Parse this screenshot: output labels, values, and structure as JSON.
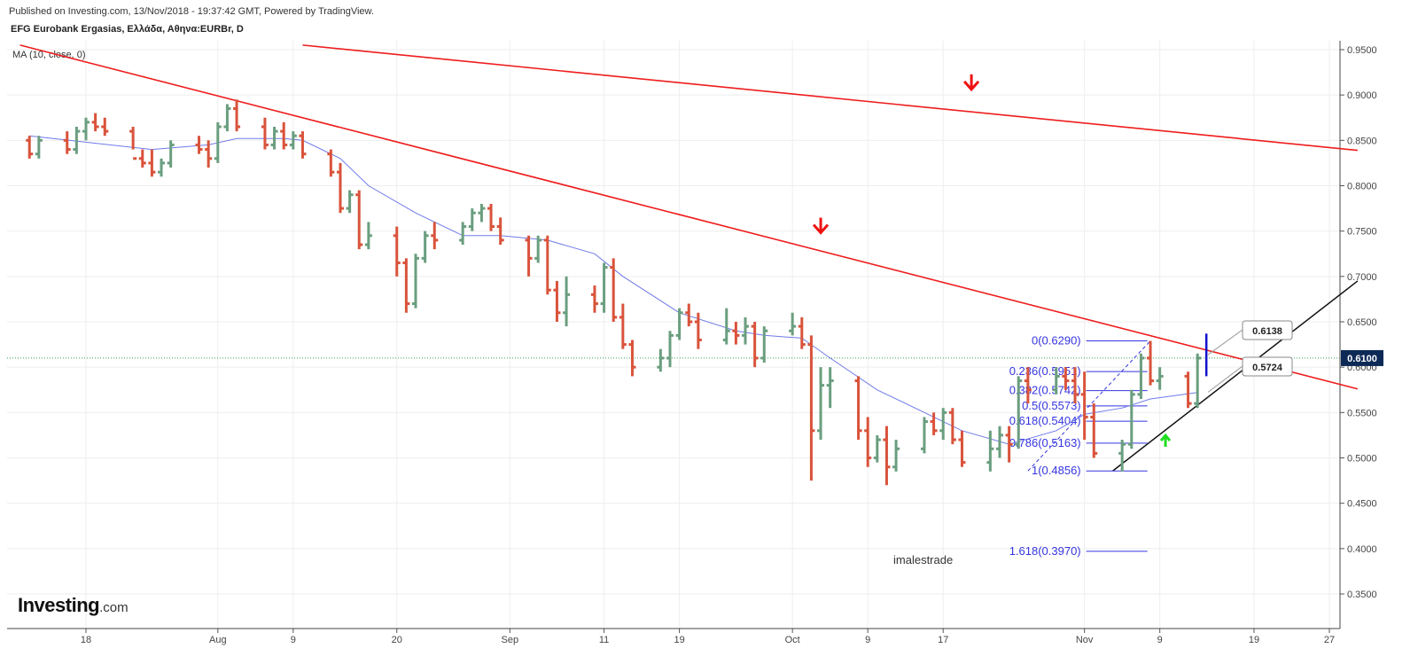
{
  "header": {
    "published": "Published on Investing.com, 13/Nov/2018 - 19:37:42 GMT, Powered by TradingView.",
    "symbol": "EFG Eurobank Ergasias, Ελλάδα, Αθηνα:EURBr, D",
    "indicator": "MA (10, close, 0)"
  },
  "logo": {
    "main": "Investing",
    "suffix": ".com"
  },
  "watermark": "imalestrade",
  "colors": {
    "up": "#6a9e7f",
    "down": "#d9533b",
    "ma": "#6f7bea",
    "trendline": "#ee1c1c",
    "support": "#111111",
    "fib": "#3535e0",
    "grid": "#eeeeee",
    "current_price_line": "#3c9e62",
    "current_price_bg": "#0d2a57",
    "arrow_up": "#22dd22",
    "arrow_down": "#ee1111"
  },
  "chart_data": {
    "type": "ohlc",
    "title": "EFG Eurobank Ergasias, Ελλάδα, Αθηνα:EURBr, D",
    "ylim": [
      0.32,
      0.96
    ],
    "yticks": [
      "0.9500",
      "0.9000",
      "0.8500",
      "0.8000",
      "0.7500",
      "0.7000",
      "0.6500",
      "0.6000",
      "0.5500",
      "0.5000",
      "0.4500",
      "0.4000",
      "0.3500"
    ],
    "xticks": [
      {
        "label": "18",
        "date": "2018-07-18"
      },
      {
        "label": "Aug",
        "date": "2018-08-01"
      },
      {
        "label": "9",
        "date": "2018-08-09"
      },
      {
        "label": "20",
        "date": "2018-08-20"
      },
      {
        "label": "Sep",
        "date": "2018-09-01"
      },
      {
        "label": "11",
        "date": "2018-09-11"
      },
      {
        "label": "19",
        "date": "2018-09-19"
      },
      {
        "label": "Oct",
        "date": "2018-10-01"
      },
      {
        "label": "9",
        "date": "2018-10-09"
      },
      {
        "label": "17",
        "date": "2018-10-17"
      },
      {
        "label": "Nov",
        "date": "2018-11-01"
      },
      {
        "label": "9",
        "date": "2018-11-09"
      },
      {
        "label": "19",
        "date": "2018-11-19"
      },
      {
        "label": "27",
        "date": "2018-11-27"
      }
    ],
    "current_price": "0.6100",
    "callouts": [
      {
        "label": "0.6138",
        "value": 0.6138
      },
      {
        "label": "0.5724",
        "value": 0.5724
      }
    ],
    "fibonacci": [
      {
        "label": "0(0.6290)",
        "value": 0.629
      },
      {
        "label": "0.236(0.5951)",
        "value": 0.5951
      },
      {
        "label": "0.382(0.5742)",
        "value": 0.5742
      },
      {
        "label": "0.5(0.5573)",
        "value": 0.5573
      },
      {
        "label": "0.618(0.5404)",
        "value": 0.5404
      },
      {
        "label": "0.786(0.5163)",
        "value": 0.5163
      },
      {
        "label": "1(0.4856)",
        "value": 0.4856
      },
      {
        "label": "1.618(0.3970)",
        "value": 0.397
      }
    ],
    "trendlines": [
      {
        "name": "upper",
        "points": [
          [
            "2018-08-10",
            0.955
          ],
          [
            "2018-11-30",
            0.839
          ]
        ]
      },
      {
        "name": "middle",
        "points": [
          [
            "2018-07-11",
            0.955
          ],
          [
            "2018-11-30",
            0.576
          ]
        ]
      },
      {
        "name": "support",
        "points": [
          [
            "2018-11-04",
            0.4856
          ],
          [
            "2018-11-30",
            0.695
          ]
        ]
      }
    ],
    "series": [
      {
        "type": "ohlc",
        "bars": [
          [
            "2018-07-12",
            0.85,
            0.855,
            0.83,
            0.835
          ],
          [
            "2018-07-13",
            0.835,
            0.855,
            0.83,
            0.85
          ],
          [
            "2018-07-16",
            0.85,
            0.86,
            0.835,
            0.84
          ],
          [
            "2018-07-17",
            0.84,
            0.865,
            0.835,
            0.86
          ],
          [
            "2018-07-18",
            0.86,
            0.875,
            0.85,
            0.87
          ],
          [
            "2018-07-19",
            0.87,
            0.88,
            0.86,
            0.865
          ],
          [
            "2018-07-20",
            0.865,
            0.875,
            0.855,
            0.86
          ],
          [
            "2018-07-23",
            0.86,
            0.865,
            0.84,
            0.83
          ],
          [
            "2018-07-24",
            0.83,
            0.84,
            0.82,
            0.825
          ],
          [
            "2018-07-25",
            0.825,
            0.84,
            0.81,
            0.815
          ],
          [
            "2018-07-26",
            0.815,
            0.83,
            0.81,
            0.825
          ],
          [
            "2018-07-27",
            0.825,
            0.85,
            0.82,
            0.845
          ],
          [
            "2018-07-30",
            0.845,
            0.855,
            0.835,
            0.84
          ],
          [
            "2018-07-31",
            0.84,
            0.85,
            0.82,
            0.83
          ],
          [
            "2018-08-01",
            0.83,
            0.87,
            0.825,
            0.865
          ],
          [
            "2018-08-02",
            0.865,
            0.89,
            0.86,
            0.885
          ],
          [
            "2018-08-03",
            0.885,
            0.895,
            0.86,
            0.865
          ],
          [
            "2018-08-06",
            0.865,
            0.875,
            0.84,
            0.845
          ],
          [
            "2018-08-07",
            0.845,
            0.865,
            0.84,
            0.86
          ],
          [
            "2018-08-08",
            0.86,
            0.87,
            0.84,
            0.845
          ],
          [
            "2018-08-09",
            0.845,
            0.86,
            0.84,
            0.855
          ],
          [
            "2018-08-10",
            0.855,
            0.86,
            0.83,
            0.835
          ],
          [
            "2018-08-13",
            0.835,
            0.84,
            0.81,
            0.815
          ],
          [
            "2018-08-14",
            0.815,
            0.825,
            0.77,
            0.775
          ],
          [
            "2018-08-15",
            0.775,
            0.795,
            0.77,
            0.79
          ],
          [
            "2018-08-16",
            0.79,
            0.795,
            0.73,
            0.735
          ],
          [
            "2018-08-17",
            0.735,
            0.76,
            0.73,
            0.745
          ],
          [
            "2018-08-20",
            0.745,
            0.755,
            0.7,
            0.715
          ],
          [
            "2018-08-21",
            0.715,
            0.72,
            0.66,
            0.67
          ],
          [
            "2018-08-22",
            0.67,
            0.725,
            0.665,
            0.72
          ],
          [
            "2018-08-23",
            0.72,
            0.75,
            0.715,
            0.745
          ],
          [
            "2018-08-24",
            0.745,
            0.76,
            0.73,
            0.74
          ],
          [
            "2018-08-27",
            0.74,
            0.76,
            0.735,
            0.755
          ],
          [
            "2018-08-28",
            0.755,
            0.775,
            0.75,
            0.77
          ],
          [
            "2018-08-29",
            0.77,
            0.78,
            0.76,
            0.775
          ],
          [
            "2018-08-30",
            0.775,
            0.78,
            0.75,
            0.755
          ],
          [
            "2018-08-31",
            0.755,
            0.765,
            0.735,
            0.74
          ],
          [
            "2018-09-03",
            0.74,
            0.745,
            0.7,
            0.72
          ],
          [
            "2018-09-04",
            0.72,
            0.745,
            0.715,
            0.74
          ],
          [
            "2018-09-05",
            0.74,
            0.745,
            0.68,
            0.685
          ],
          [
            "2018-09-06",
            0.685,
            0.695,
            0.65,
            0.66
          ],
          [
            "2018-09-07",
            0.66,
            0.7,
            0.645,
            0.68
          ],
          [
            "2018-09-10",
            0.68,
            0.69,
            0.66,
            0.67
          ],
          [
            "2018-09-11",
            0.67,
            0.715,
            0.66,
            0.71
          ],
          [
            "2018-09-12",
            0.71,
            0.72,
            0.65,
            0.655
          ],
          [
            "2018-09-13",
            0.655,
            0.67,
            0.62,
            0.625
          ],
          [
            "2018-09-14",
            0.625,
            0.63,
            0.59,
            0.6
          ],
          [
            "2018-09-17",
            0.6,
            0.62,
            0.595,
            0.61
          ],
          [
            "2018-09-18",
            0.61,
            0.64,
            0.6,
            0.635
          ],
          [
            "2018-09-19",
            0.635,
            0.665,
            0.63,
            0.66
          ],
          [
            "2018-09-20",
            0.66,
            0.67,
            0.645,
            0.65
          ],
          [
            "2018-09-21",
            0.65,
            0.66,
            0.62,
            0.63
          ],
          [
            "2018-09-24",
            0.63,
            0.665,
            0.625,
            0.64
          ],
          [
            "2018-09-25",
            0.64,
            0.65,
            0.625,
            0.635
          ],
          [
            "2018-09-26",
            0.635,
            0.655,
            0.625,
            0.645
          ],
          [
            "2018-09-27",
            0.645,
            0.65,
            0.6,
            0.61
          ],
          [
            "2018-09-28",
            0.61,
            0.645,
            0.605,
            0.64
          ],
          [
            "2018-10-01",
            0.64,
            0.66,
            0.635,
            0.645
          ],
          [
            "2018-10-02",
            0.645,
            0.655,
            0.62,
            0.625
          ],
          [
            "2018-10-03",
            0.625,
            0.635,
            0.475,
            0.53
          ],
          [
            "2018-10-04",
            0.53,
            0.6,
            0.52,
            0.58
          ],
          [
            "2018-10-05",
            0.58,
            0.6,
            0.555,
            0.585
          ],
          [
            "2018-10-08",
            0.585,
            0.59,
            0.52,
            0.53
          ],
          [
            "2018-10-09",
            0.53,
            0.545,
            0.49,
            0.5
          ],
          [
            "2018-10-10",
            0.5,
            0.525,
            0.495,
            0.52
          ],
          [
            "2018-10-11",
            0.52,
            0.535,
            0.47,
            0.49
          ],
          [
            "2018-10-12",
            0.49,
            0.52,
            0.485,
            0.51
          ],
          [
            "2018-10-15",
            0.51,
            0.545,
            0.505,
            0.54
          ],
          [
            "2018-10-16",
            0.54,
            0.55,
            0.525,
            0.53
          ],
          [
            "2018-10-17",
            0.53,
            0.555,
            0.52,
            0.55
          ],
          [
            "2018-10-18",
            0.55,
            0.555,
            0.515,
            0.52
          ],
          [
            "2018-10-19",
            0.52,
            0.53,
            0.49,
            0.495
          ],
          [
            "2018-10-22",
            0.495,
            0.53,
            0.485,
            0.51
          ],
          [
            "2018-10-23",
            0.51,
            0.535,
            0.5,
            0.525
          ],
          [
            "2018-10-24",
            0.525,
            0.535,
            0.495,
            0.515
          ],
          [
            "2018-10-25",
            0.515,
            0.59,
            0.51,
            0.585
          ],
          [
            "2018-10-26",
            0.585,
            0.6,
            0.56,
            0.575
          ],
          [
            "2018-10-29",
            0.575,
            0.6,
            0.57,
            0.59
          ],
          [
            "2018-10-30",
            0.59,
            0.6,
            0.575,
            0.585
          ],
          [
            "2018-10-31",
            0.585,
            0.6,
            0.56,
            0.57
          ],
          [
            "2018-11-01",
            0.57,
            0.595,
            0.52,
            0.545
          ],
          [
            "2018-11-02",
            0.545,
            0.56,
            0.5,
            0.505
          ],
          [
            "2018-11-05",
            0.505,
            0.52,
            0.485,
            0.515
          ],
          [
            "2018-11-06",
            0.515,
            0.575,
            0.51,
            0.57
          ],
          [
            "2018-11-07",
            0.57,
            0.615,
            0.565,
            0.61
          ],
          [
            "2018-11-08",
            0.61,
            0.629,
            0.58,
            0.585
          ],
          [
            "2018-11-09",
            0.585,
            0.6,
            0.575,
            0.59
          ],
          [
            "2018-11-12",
            0.59,
            0.595,
            0.555,
            0.56
          ],
          [
            "2018-11-13",
            0.56,
            0.615,
            0.555,
            0.61
          ]
        ]
      },
      {
        "name": "MA (10, close, 0)",
        "type": "line",
        "points": [
          [
            "2018-07-12",
            0.855
          ],
          [
            "2018-07-18",
            0.848
          ],
          [
            "2018-07-25",
            0.84
          ],
          [
            "2018-07-31",
            0.845
          ],
          [
            "2018-08-03",
            0.852
          ],
          [
            "2018-08-08",
            0.852
          ],
          [
            "2018-08-10",
            0.85
          ],
          [
            "2018-08-14",
            0.83
          ],
          [
            "2018-08-17",
            0.8
          ],
          [
            "2018-08-22",
            0.77
          ],
          [
            "2018-08-27",
            0.745
          ],
          [
            "2018-08-31",
            0.745
          ],
          [
            "2018-09-05",
            0.74
          ],
          [
            "2018-09-10",
            0.725
          ],
          [
            "2018-09-13",
            0.7
          ],
          [
            "2018-09-19",
            0.66
          ],
          [
            "2018-09-25",
            0.64
          ],
          [
            "2018-09-28",
            0.635
          ],
          [
            "2018-10-02",
            0.632
          ],
          [
            "2018-10-05",
            0.61
          ],
          [
            "2018-10-10",
            0.575
          ],
          [
            "2018-10-16",
            0.545
          ],
          [
            "2018-10-19",
            0.53
          ],
          [
            "2018-10-24",
            0.515
          ],
          [
            "2018-10-29",
            0.53
          ],
          [
            "2018-11-01",
            0.548
          ],
          [
            "2018-11-05",
            0.555
          ],
          [
            "2018-11-08",
            0.565
          ],
          [
            "2018-11-13",
            0.572
          ]
        ]
      }
    ]
  }
}
